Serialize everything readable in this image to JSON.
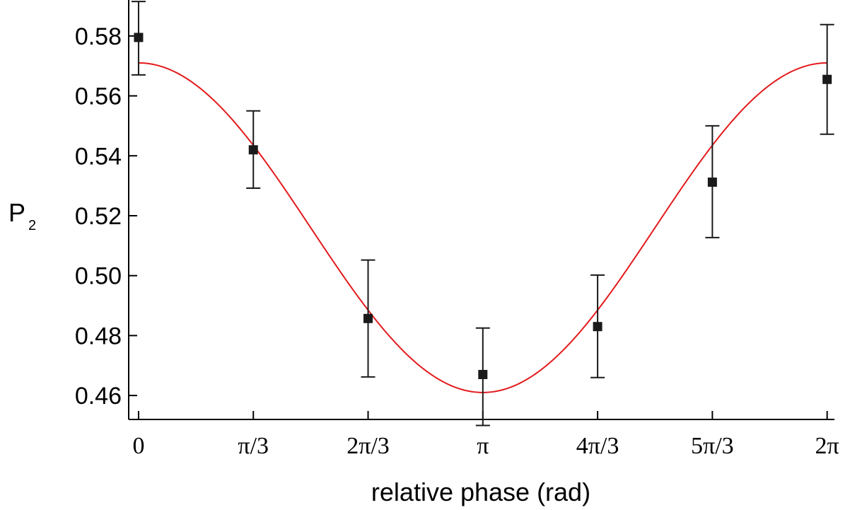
{
  "chart_data": {
    "type": "scatter",
    "title": "",
    "xlabel": "relative phase (rad)",
    "ylabel": "P",
    "ylabel_subscript": "2",
    "xlim": [
      -0.09,
      6.35
    ],
    "ylim": [
      0.452,
      0.592
    ],
    "x_ticks": [
      {
        "value": 0,
        "label": "0"
      },
      {
        "value": 1.0472,
        "label": "π/3"
      },
      {
        "value": 2.0944,
        "label": "2π/3"
      },
      {
        "value": 3.1416,
        "label": "π"
      },
      {
        "value": 4.1888,
        "label": "4π/3"
      },
      {
        "value": 5.236,
        "label": "5π/3"
      },
      {
        "value": 6.2832,
        "label": "2π"
      }
    ],
    "y_ticks": [
      {
        "value": 0.46,
        "label": "0.46"
      },
      {
        "value": 0.48,
        "label": "0.48"
      },
      {
        "value": 0.5,
        "label": "0.50"
      },
      {
        "value": 0.52,
        "label": "0.52"
      },
      {
        "value": 0.54,
        "label": "0.54"
      },
      {
        "value": 0.56,
        "label": "0.56"
      },
      {
        "value": 0.58,
        "label": "0.58"
      }
    ],
    "series": [
      {
        "kind": "points_with_error_bars",
        "color": "#1a1a1a",
        "points": [
          {
            "x": 0,
            "y": 0.5795,
            "err_low": 0.0125,
            "err_high": 0.012
          },
          {
            "x": 1.0472,
            "y": 0.542,
            "err_low": 0.0128,
            "err_high": 0.013
          },
          {
            "x": 2.0944,
            "y": 0.4857,
            "err_low": 0.0195,
            "err_high": 0.0195
          },
          {
            "x": 3.1416,
            "y": 0.467,
            "err_low": 0.017,
            "err_high": 0.0155
          },
          {
            "x": 4.1888,
            "y": 0.483,
            "err_low": 0.017,
            "err_high": 0.0172
          },
          {
            "x": 5.236,
            "y": 0.5312,
            "err_low": 0.0185,
            "err_high": 0.0188
          },
          {
            "x": 6.2832,
            "y": 0.5655,
            "err_low": 0.0183,
            "err_high": 0.0183
          }
        ]
      },
      {
        "kind": "fit_curve",
        "color": "#e31a1c",
        "model": "offset + amplitude * cos(x)",
        "offset": 0.516,
        "amplitude": 0.055
      }
    ],
    "grid": false,
    "legend": "none"
  }
}
